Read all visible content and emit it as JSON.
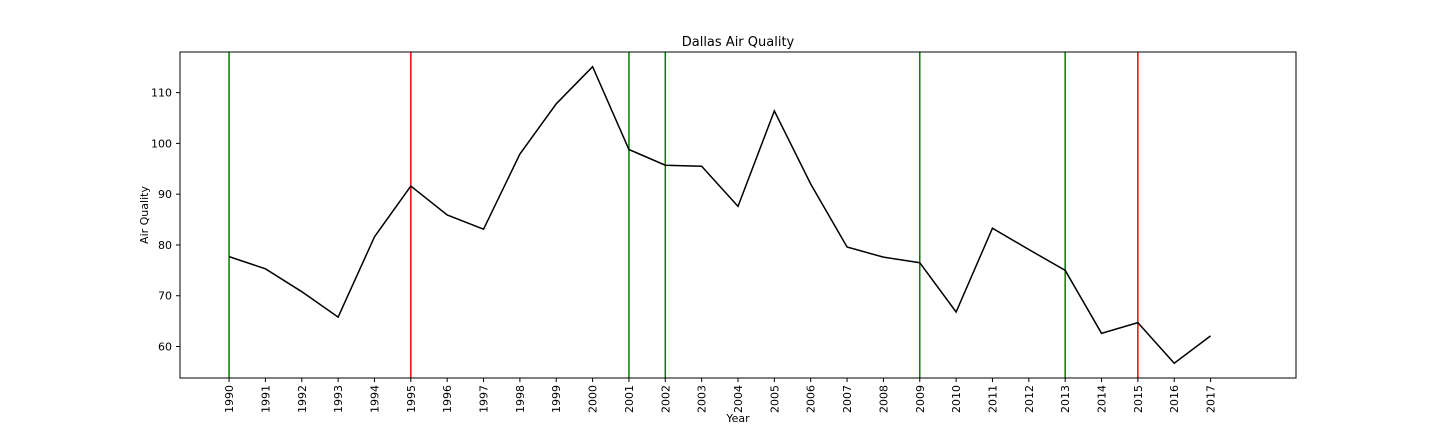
{
  "chart_data": {
    "type": "line",
    "title": "Dallas Air Quality",
    "xlabel": "Year",
    "ylabel": "Air Quality",
    "ylim": [
      53.8,
      118.0
    ],
    "yticks": [
      60,
      70,
      80,
      90,
      100,
      110
    ],
    "ytick_labels": [
      "60",
      "70",
      "80",
      "90",
      "100",
      "110"
    ],
    "grid": false,
    "x": [
      1990,
      1991,
      1992,
      1993,
      1994,
      1995,
      1996,
      1997,
      1998,
      1999,
      2000,
      2001,
      2002,
      2003,
      2004,
      2005,
      2006,
      2007,
      2008,
      2009,
      2010,
      2011,
      2012,
      2013,
      2014,
      2015,
      2016,
      2017
    ],
    "xtick_labels": [
      "1990",
      "1991",
      "1992",
      "1993",
      "1994",
      "1995",
      "1996",
      "1997",
      "1998",
      "1999",
      "2000",
      "2001",
      "2002",
      "2003",
      "2004",
      "2005",
      "2006",
      "2007",
      "2008",
      "2009",
      "2010",
      "2011",
      "2012",
      "2013",
      "2014",
      "2015",
      "2016",
      "2017"
    ],
    "series": [
      {
        "color": "#000000",
        "values": [
          77.7,
          75.3,
          70.8,
          65.8,
          81.6,
          91.6,
          85.9,
          83.1,
          97.9,
          107.8,
          115.1,
          98.8,
          95.7,
          95.5,
          87.6,
          106.4,
          92.0,
          79.6,
          77.6,
          76.5,
          66.8,
          83.3,
          79.1,
          75.0,
          62.6,
          64.7,
          56.7,
          62.1
        ]
      }
    ],
    "vlines": [
      {
        "x": 1990,
        "color": "#008000"
      },
      {
        "x": 1995,
        "color": "#ff0000"
      },
      {
        "x": 2001,
        "color": "#008000"
      },
      {
        "x": 2002,
        "color": "#008000"
      },
      {
        "x": 2009,
        "color": "#008000"
      },
      {
        "x": 2013,
        "color": "#008000"
      },
      {
        "x": 2015,
        "color": "#ff0000"
      }
    ]
  }
}
